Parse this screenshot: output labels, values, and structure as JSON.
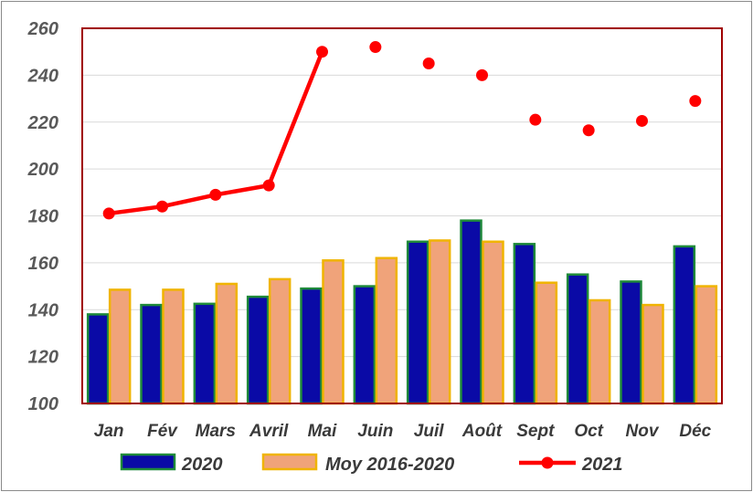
{
  "chart_data": {
    "type": "bar",
    "categories": [
      "Jan",
      "Fév",
      "Mars",
      "Avril",
      "Mai",
      "Juin",
      "Juil",
      "Août",
      "Sept",
      "Oct",
      "Nov",
      "Déc"
    ],
    "series": [
      {
        "name": "2020",
        "kind": "bar",
        "color": "#0a0aa6",
        "border": "#1f8a3a",
        "values": [
          138,
          142,
          142.5,
          145.5,
          149,
          150,
          169,
          178,
          168,
          155,
          152,
          167
        ]
      },
      {
        "name": "Moy 2016-2020",
        "kind": "bar",
        "color": "#f0a37a",
        "border": "#f0b400",
        "values": [
          148.5,
          148.5,
          151,
          153,
          161,
          162,
          169.5,
          169,
          151.5,
          144,
          142,
          150
        ]
      },
      {
        "name": "2021",
        "kind": "line",
        "color": "#ff0000",
        "values": [
          181,
          184,
          189,
          193,
          250,
          252,
          245,
          240,
          221,
          216.5,
          220.5,
          229
        ],
        "line_segments_through_index": 4
      }
    ],
    "y_ticks": [
      100,
      120,
      140,
      160,
      180,
      200,
      220,
      240,
      260
    ],
    "ylim": [
      100,
      260
    ],
    "grid": true,
    "legend_position": "bottom",
    "title": "",
    "xlabel": "",
    "ylabel": "",
    "plot_border_color": "#a00000",
    "grid_color": "#d9d9d9"
  }
}
